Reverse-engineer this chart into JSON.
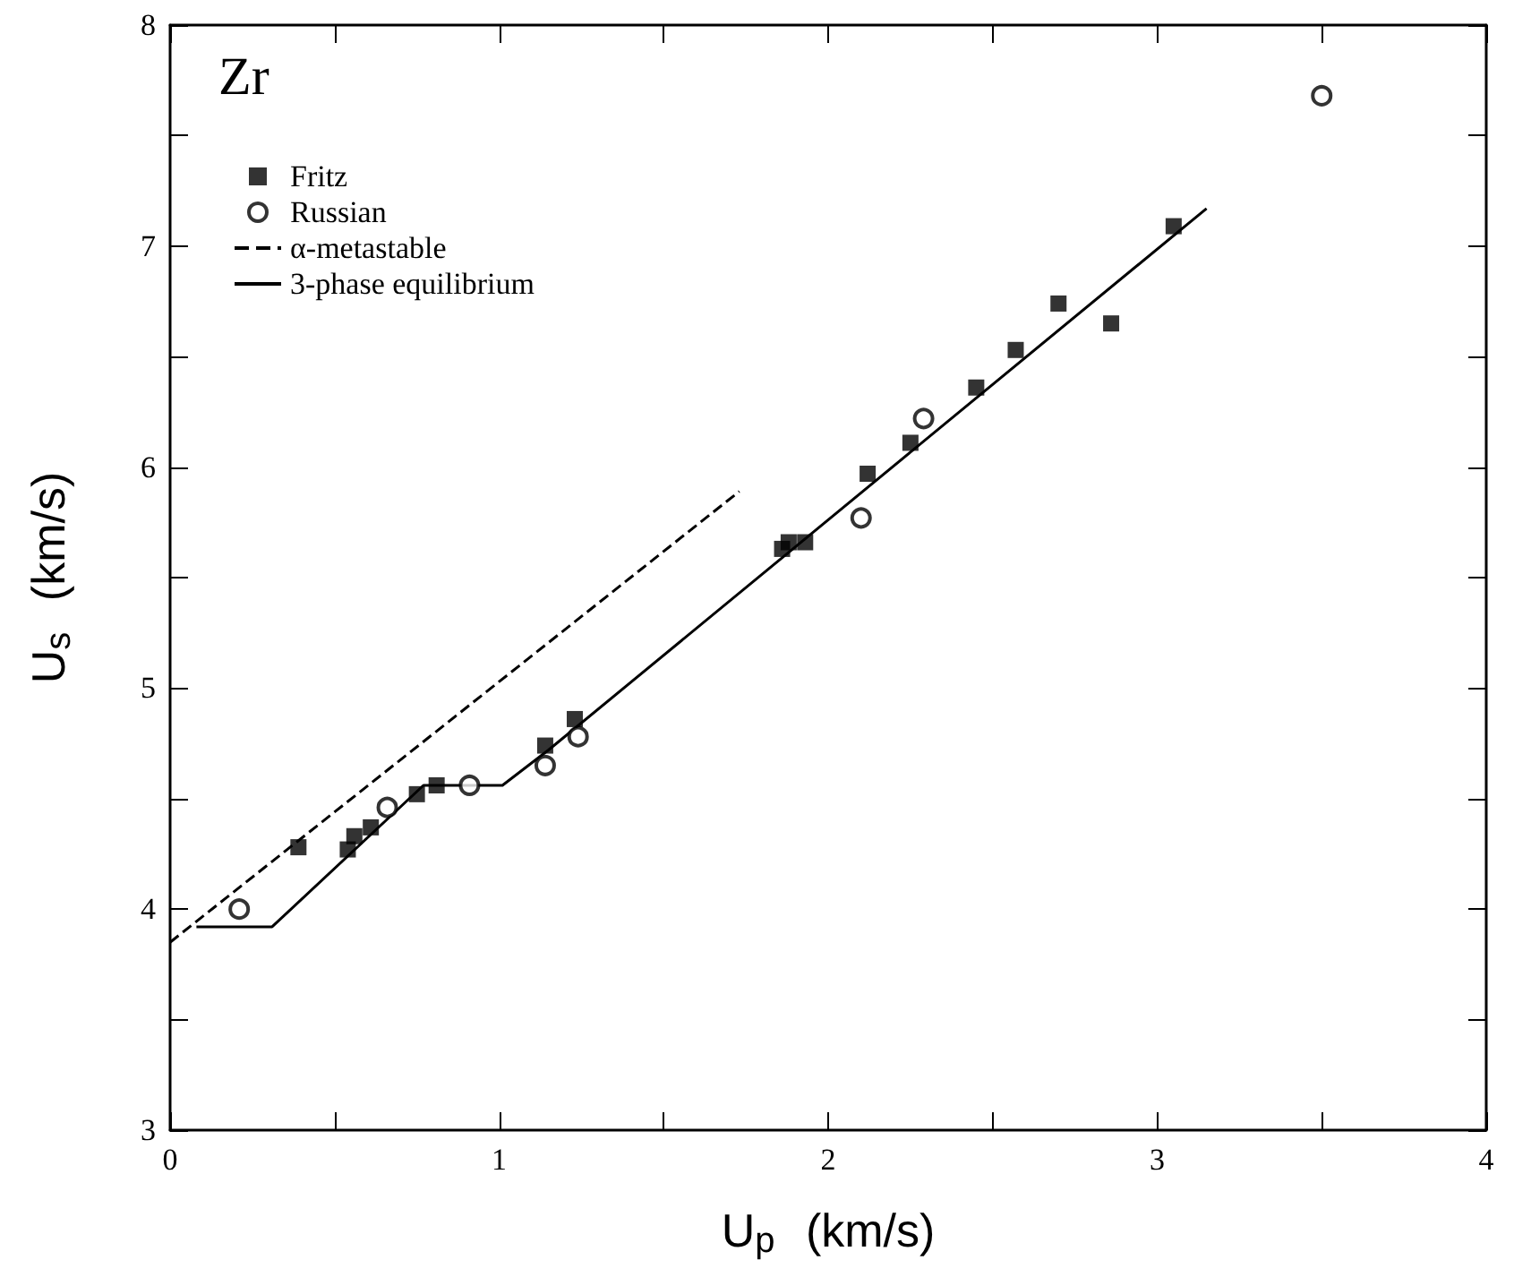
{
  "chart_data": {
    "type": "scatter",
    "xlabel": "U$_{p}$ (km/s)",
    "ylabel": "U$_{s}$ (km/s)",
    "annotations": [
      "Zr"
    ],
    "xlim": [
      0,
      4
    ],
    "xticks": [
      0,
      {
        "value": 0.5,
        "label": null
      },
      1,
      {
        "value": 1.5,
        "label": null
      },
      2,
      {
        "value": 2.5,
        "label": null
      },
      3,
      {
        "value": 3.5,
        "label": null
      },
      4
    ],
    "ylim": [
      3,
      8
    ],
    "yticks": [
      3,
      {
        "value": 3.5,
        "label": null
      },
      4,
      {
        "value": 4.5,
        "label": null
      },
      5,
      {
        "value": 5.5,
        "label": null
      },
      6,
      {
        "value": 6.5,
        "label": null
      },
      7,
      {
        "value": 7.5,
        "label": null
      },
      8
    ],
    "grid": false,
    "legend": "top left",
    "series": [
      {
        "name": "Fritz",
        "marker": "square",
        "color": "#000000",
        "x": [
          0.39,
          0.54,
          0.56,
          0.61,
          0.75,
          0.81,
          1.14,
          1.23,
          1.86,
          1.88,
          1.93,
          2.12,
          2.25,
          2.45,
          2.57,
          2.7,
          2.86,
          3.05
        ],
        "values": [
          4.28,
          4.27,
          4.33,
          4.37,
          4.52,
          4.56,
          4.74,
          4.86,
          5.63,
          5.66,
          5.66,
          5.97,
          6.11,
          6.36,
          6.53,
          6.74,
          6.65,
          7.09
        ]
      },
      {
        "name": "Russian",
        "marker": "circle",
        "color": "#000000",
        "x": [
          0.21,
          0.66,
          0.91,
          1.14,
          1.24,
          2.1,
          2.29,
          3.5
        ],
        "values": [
          4.0,
          4.46,
          4.56,
          4.65,
          4.78,
          5.77,
          6.22,
          7.68
        ]
      },
      {
        "name": "α-metastable",
        "type": "line",
        "marker": "none",
        "line_style": "dashed",
        "color": "#000000",
        "x": [
          0,
          1.73
        ],
        "values": [
          3.85,
          5.89
        ]
      },
      {
        "name": "3-phase equilibrium",
        "type": "line",
        "marker": "none",
        "line_style": "solid",
        "color": "#000000",
        "x": [
          0.08,
          0.31,
          0.77,
          1.01,
          1.15,
          3.15
        ],
        "values": [
          3.92,
          3.92,
          4.56,
          4.56,
          4.72,
          7.17
        ]
      }
    ]
  }
}
